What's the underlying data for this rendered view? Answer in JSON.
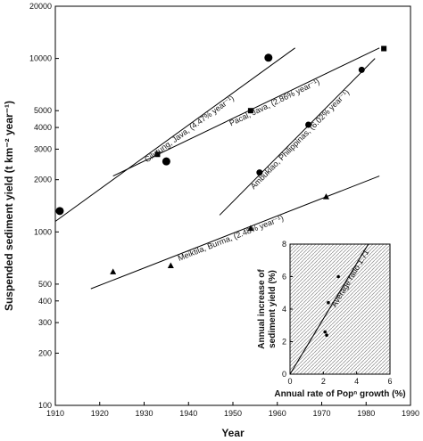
{
  "chart_data": [
    {
      "type": "scatter",
      "xlabel": "Year",
      "ylabel": "Suspended sediment yield (t km⁻² year⁻¹)",
      "xlim": [
        1910,
        1990
      ],
      "ylim": [
        100,
        20000
      ],
      "yscale": "log",
      "x_ticks": [
        1910,
        1920,
        1930,
        1940,
        1950,
        1960,
        1970,
        1980,
        1990
      ],
      "y_tick_labels": [
        "100",
        "200",
        "300",
        "400",
        "500",
        "1000",
        "2000",
        "3000",
        "4000",
        "5000",
        "10000",
        "20000"
      ],
      "grid": false,
      "series": [
        {
          "name": "Cilutung, Java, (4.47% year⁻¹)",
          "marker": "circle-large",
          "points": [
            [
              1911,
              1320
            ],
            [
              1935,
              2550
            ],
            [
              1958,
              10100
            ]
          ],
          "trend": [
            [
              1910,
              1150
            ],
            [
              1964,
              11500
            ]
          ]
        },
        {
          "name": "Pacal, Java, (2.86% year⁻¹)",
          "marker": "square",
          "points": [
            [
              1933,
              2800
            ],
            [
              1954,
              5000
            ],
            [
              1984,
              11400
            ]
          ],
          "trend": [
            [
              1923,
              2100
            ],
            [
              1983,
              11500
            ]
          ]
        },
        {
          "name": "Ambuklao, Philippinas, (6.02% year⁻¹)",
          "marker": "circle",
          "points": [
            [
              1956,
              2200
            ],
            [
              1967,
              4150
            ],
            [
              1979,
              8600
            ]
          ],
          "trend": [
            [
              1947,
              1250
            ],
            [
              1982,
              10000
            ]
          ]
        },
        {
          "name": "Meiktila, Burma, (2.48% year⁻¹)",
          "marker": "triangle",
          "points": [
            [
              1923,
              590
            ],
            [
              1936,
              640
            ],
            [
              1954,
              1050
            ],
            [
              1971,
              1600
            ]
          ],
          "trend": [
            [
              1918,
              470
            ],
            [
              1983,
              2100
            ]
          ]
        }
      ]
    },
    {
      "type": "scatter",
      "xlabel": "Annual rate of Popⁿ growth (%)",
      "ylabel": "Annual increase of sediment yield (%)",
      "xlim": [
        0,
        6
      ],
      "ylim": [
        0,
        8
      ],
      "x_ticks": [
        0,
        2,
        4,
        6
      ],
      "y_ticks": [
        0,
        2,
        4,
        6,
        8
      ],
      "grid": false,
      "points": [
        [
          2.1,
          2.6
        ],
        [
          2.2,
          2.4
        ],
        [
          2.9,
          6.0
        ],
        [
          2.3,
          4.4
        ]
      ],
      "trend": [
        [
          0,
          0
        ],
        [
          4.7,
          8
        ]
      ],
      "trend_label": "Average ratio 1.71"
    }
  ]
}
